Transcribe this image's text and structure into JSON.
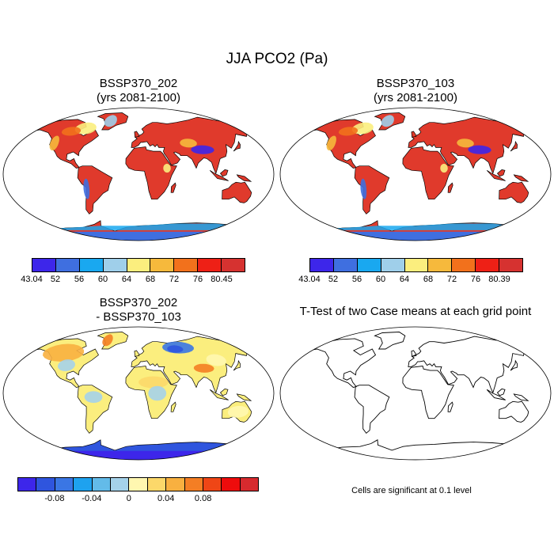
{
  "figure": {
    "title": "JJA PCO2 (Pa)"
  },
  "panels": [
    {
      "title_line1": "BSSP370_202",
      "title_line2": "(yrs 2081-2100)",
      "colorbar": {
        "labels": [
          "43.04",
          "52",
          "56",
          "60",
          "64",
          "68",
          "72",
          "76",
          "80.45"
        ],
        "colors": [
          "#3d26ea",
          "#3f6fe0",
          "#19a8f0",
          "#9fcfea",
          "#fbee7e",
          "#f6b93c",
          "#f2711c",
          "#ee2016",
          "#d63230"
        ]
      }
    },
    {
      "title_line1": "BSSP370_103",
      "title_line2": "(yrs 2081-2100)",
      "colorbar": {
        "labels": [
          "43.04",
          "52",
          "56",
          "60",
          "64",
          "68",
          "72",
          "76",
          "80.39"
        ],
        "colors": [
          "#3d26ea",
          "#3f6fe0",
          "#19a8f0",
          "#9fcfea",
          "#fbee7e",
          "#f6b93c",
          "#f2711c",
          "#ee2016",
          "#d63230"
        ]
      }
    },
    {
      "title_line1": "BSSP370_202",
      "title_line2": "- BSSP370_103",
      "colorbar": {
        "labels": [
          "-0.08",
          "-0.04",
          "0",
          "0.04",
          "0.08"
        ],
        "colors": [
          "#3d26ea",
          "#2f55de",
          "#3a76e4",
          "#1ea2ef",
          "#63bbe9",
          "#a5d2ea",
          "#fff7b0",
          "#fcd86a",
          "#f8b040",
          "#f47e24",
          "#ef4616",
          "#ee0c0c",
          "#d72a2e"
        ]
      }
    },
    {
      "title_line1": "T-Test of two Case means at each grid point",
      "note": "Cells are significant at 0.1 level"
    }
  ],
  "colors": {
    "ocean": "#ffffff",
    "coast": "#000000"
  }
}
